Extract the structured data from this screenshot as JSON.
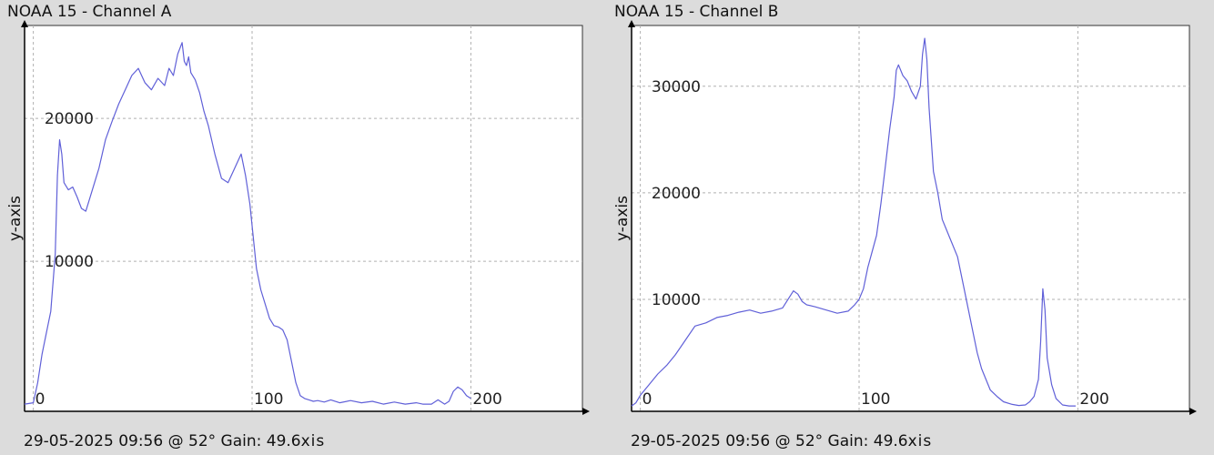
{
  "chart_data": [
    {
      "type": "line",
      "title": "NOAA 15 - Channel A",
      "footer": "29-05-2025 09:56 @ 52° Gain: 49.6",
      "xlabel_fragment": "xis",
      "ylabel": "y-axis",
      "xlim": [
        -4,
        251
      ],
      "ylim": [
        -500,
        26500
      ],
      "grid": true,
      "x_ticks": [
        0,
        100,
        200
      ],
      "y_ticks": [
        10000,
        20000
      ],
      "color": "#6060d8",
      "series": [
        {
          "x": [
            -4,
            0,
            2,
            4,
            6,
            8,
            10,
            11,
            12,
            13,
            14,
            16,
            18,
            20,
            22,
            24,
            26,
            28,
            30,
            33,
            36,
            39,
            42,
            45,
            48,
            51,
            54,
            57,
            60,
            62,
            64,
            66,
            68,
            69,
            70,
            71,
            72,
            74,
            76,
            78,
            80,
            83,
            86,
            89,
            92,
            95,
            97,
            99,
            100,
            101,
            102,
            104,
            106,
            108,
            110,
            112,
            114,
            116,
            118,
            120,
            122,
            124,
            126,
            128,
            130,
            133,
            136,
            140,
            145,
            150,
            155,
            160,
            165,
            170,
            175,
            178,
            182,
            185,
            188,
            190,
            192,
            194,
            196,
            198,
            200
          ],
          "y": [
            0,
            100,
            1500,
            3500,
            5000,
            6500,
            10500,
            16000,
            18500,
            17500,
            15500,
            15000,
            15200,
            14500,
            13700,
            13500,
            14500,
            15500,
            16500,
            18500,
            19800,
            21000,
            22000,
            23000,
            23500,
            22500,
            22000,
            22800,
            22300,
            23500,
            23000,
            24500,
            25300,
            24000,
            23700,
            24300,
            23200,
            22700,
            21800,
            20500,
            19500,
            17500,
            15800,
            15500,
            16500,
            17500,
            16000,
            14000,
            12500,
            11000,
            9500,
            8000,
            7000,
            6000,
            5500,
            5400,
            5200,
            4500,
            3000,
            1500,
            600,
            400,
            300,
            200,
            250,
            150,
            300,
            100,
            250,
            100,
            200,
            0,
            150,
            0,
            100,
            0,
            0,
            300,
            0,
            200,
            900,
            1200,
            1000,
            600,
            400
          ]
        }
      ]
    },
    {
      "type": "line",
      "title": "NOAA 15 - Channel B",
      "footer": "29-05-2025 09:56 @ 52° Gain: 49.6",
      "xlabel_fragment": "xis",
      "ylabel": "y-axis",
      "xlim": [
        -4,
        251
      ],
      "ylim": [
        -500,
        35700
      ],
      "grid": true,
      "x_ticks": [
        0,
        100,
        200
      ],
      "y_ticks": [
        10000,
        20000,
        30000
      ],
      "color": "#6060d8",
      "series": [
        {
          "x": [
            -4,
            -2,
            0,
            4,
            8,
            12,
            16,
            20,
            25,
            30,
            35,
            40,
            45,
            50,
            55,
            60,
            65,
            70,
            72,
            74,
            76,
            80,
            85,
            90,
            95,
            98,
            100,
            102,
            104,
            106,
            108,
            110,
            112,
            114,
            116,
            117,
            118,
            120,
            122,
            124,
            126,
            128,
            129,
            130,
            131,
            132,
            134,
            136,
            138,
            140,
            142,
            145,
            148,
            150,
            152,
            154,
            156,
            158,
            160,
            163,
            166,
            170,
            173,
            176,
            178,
            180,
            182,
            183,
            184,
            185,
            186,
            188,
            190,
            193,
            196,
            199
          ],
          "y": [
            0,
            300,
            1000,
            2000,
            3000,
            3800,
            4800,
            6000,
            7500,
            7800,
            8300,
            8500,
            8800,
            9000,
            8700,
            8900,
            9200,
            10800,
            10500,
            9800,
            9500,
            9300,
            9000,
            8700,
            8900,
            9500,
            10000,
            11000,
            13000,
            14500,
            16000,
            19000,
            22500,
            26000,
            29000,
            31500,
            32000,
            31000,
            30500,
            29500,
            28800,
            30000,
            33000,
            34500,
            32500,
            28000,
            22000,
            20000,
            17500,
            16500,
            15500,
            14000,
            11000,
            9000,
            7000,
            5000,
            3500,
            2500,
            1500,
            900,
            400,
            150,
            50,
            100,
            400,
            900,
            2500,
            6000,
            11000,
            9000,
            4500,
            2000,
            700,
            100,
            0,
            0
          ]
        }
      ]
    }
  ]
}
